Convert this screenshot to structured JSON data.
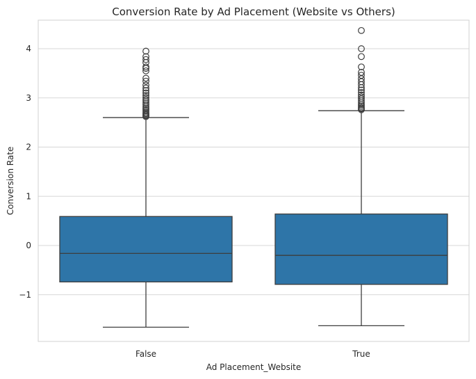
{
  "chart_data": {
    "type": "box",
    "title": "Conversion Rate by Ad Placement (Website vs Others)",
    "xlabel": "Ad Placement_Website",
    "ylabel": "Conversion Rate",
    "ylim": [
      -1.95,
      4.58
    ],
    "yticks": [
      -1,
      0,
      1,
      2,
      3,
      4
    ],
    "ytick_labels": [
      "−1",
      "0",
      "1",
      "2",
      "3",
      "4"
    ],
    "grid": true,
    "categories": [
      "False",
      "True"
    ],
    "color": "#2e75a8",
    "boxes": [
      {
        "category": "False",
        "q1": -0.74,
        "median": -0.16,
        "q3": 0.59,
        "whisker_low": -1.66,
        "whisker_high": 2.6,
        "outliers": [
          2.62,
          2.64,
          2.66,
          2.68,
          2.7,
          2.73,
          2.76,
          2.79,
          2.82,
          2.86,
          2.9,
          2.94,
          2.97,
          3.01,
          3.05,
          3.1,
          3.15,
          3.2,
          3.26,
          3.34,
          3.4,
          3.55,
          3.6,
          3.63,
          3.72,
          3.78,
          3.84,
          3.95
        ]
      },
      {
        "category": "True",
        "q1": -0.79,
        "median": -0.2,
        "q3": 0.64,
        "whisker_low": -1.63,
        "whisker_high": 2.74,
        "outliers": [
          2.76,
          2.78,
          2.8,
          2.83,
          2.86,
          2.9,
          2.94,
          2.98,
          3.02,
          3.06,
          3.11,
          3.16,
          3.21,
          3.27,
          3.33,
          3.39,
          3.46,
          3.52,
          3.63,
          3.84,
          4.0,
          4.37
        ]
      }
    ]
  }
}
